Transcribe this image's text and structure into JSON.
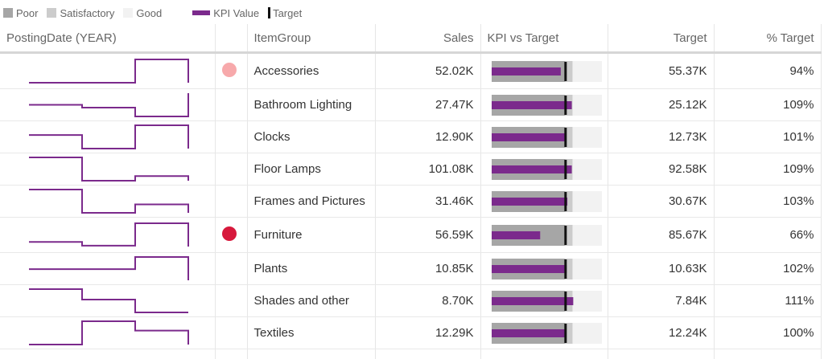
{
  "legend": {
    "poor": "Poor",
    "satisfactory": "Satisfactory",
    "good": "Good",
    "kpi_value": "KPI Value",
    "target": "Target"
  },
  "colors": {
    "poor": "#a6a6a6",
    "satisfactory": "#cccccc",
    "good": "#f2f2f2",
    "kpi": "#7b2a8c",
    "target": "#111111",
    "status_warn": "#f7a9ab",
    "status_bad": "#d7193c"
  },
  "table": {
    "headers": {
      "date": "PostingDate (YEAR)",
      "item": "ItemGroup",
      "sales": "Sales",
      "kpi": "KPI vs Target",
      "target": "Target",
      "pct": "% Target"
    }
  },
  "chart_data": {
    "type": "table",
    "bullet_scale": {
      "max": 1.5,
      "poor_upper": 1.0,
      "satisfactory_upper": 1.1
    },
    "rows": [
      {
        "item": "Accessories",
        "sales": "52.02K",
        "target": "55.37K",
        "pct": "94%",
        "pct_value": 0.94,
        "status": "warn",
        "trend": [
          0.0,
          0.0,
          1.0,
          1.0
        ]
      },
      {
        "item": "Bathroom Lighting",
        "sales": "27.47K",
        "target": "25.12K",
        "pct": "109%",
        "pct_value": 1.09,
        "status": "none",
        "trend": [
          0.5,
          0.38,
          0.0,
          1.0
        ]
      },
      {
        "item": "Clocks",
        "sales": "12.90K",
        "target": "12.73K",
        "pct": "101%",
        "pct_value": 1.01,
        "status": "none",
        "trend": [
          0.58,
          0.0,
          1.0,
          1.0
        ]
      },
      {
        "item": "Floor Lamps",
        "sales": "101.08K",
        "target": "92.58K",
        "pct": "109%",
        "pct_value": 1.09,
        "status": "none",
        "trend": [
          1.0,
          0.0,
          0.2,
          0.2
        ]
      },
      {
        "item": "Frames and Pictures",
        "sales": "31.46K",
        "target": "30.67K",
        "pct": "103%",
        "pct_value": 1.03,
        "status": "none",
        "trend": [
          1.0,
          0.0,
          0.36,
          0.36
        ]
      },
      {
        "item": "Furniture",
        "sales": "56.59K",
        "target": "85.67K",
        "pct": "66%",
        "pct_value": 0.66,
        "status": "bad",
        "trend": [
          0.2,
          0.04,
          1.0,
          1.0
        ]
      },
      {
        "item": "Plants",
        "sales": "10.85K",
        "target": "10.63K",
        "pct": "102%",
        "pct_value": 1.02,
        "status": "none",
        "trend": [
          0.48,
          0.48,
          1.0,
          1.0
        ]
      },
      {
        "item": "Shades and other",
        "sales": "8.70K",
        "target": "7.84K",
        "pct": "111%",
        "pct_value": 1.11,
        "status": "none",
        "trend": [
          1.0,
          0.55,
          0.0,
          0.0
        ]
      },
      {
        "item": "Textiles",
        "sales": "12.29K",
        "target": "12.24K",
        "pct": "100%",
        "pct_value": 1.0,
        "status": "none",
        "trend": [
          0.0,
          1.0,
          0.6,
          0.0
        ]
      }
    ]
  }
}
